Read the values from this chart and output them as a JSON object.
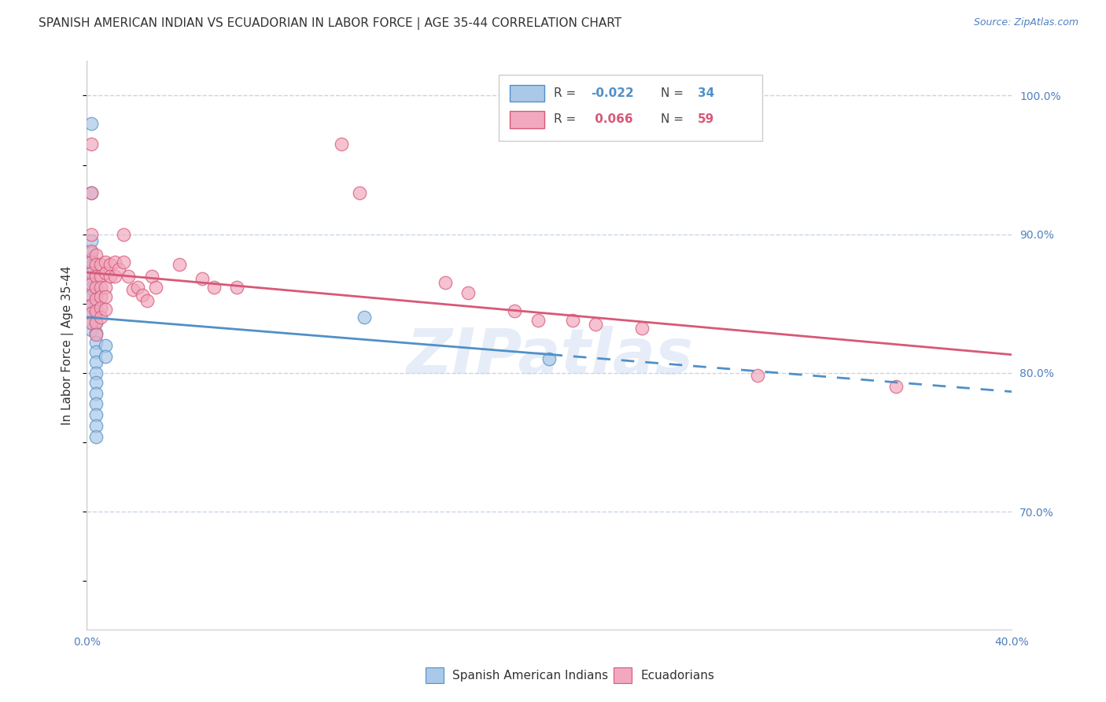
{
  "title": "SPANISH AMERICAN INDIAN VS ECUADORIAN IN LABOR FORCE | AGE 35-44 CORRELATION CHART",
  "source": "Source: ZipAtlas.com",
  "ylabel": "In Labor Force | Age 35-44",
  "xlim": [
    0.0,
    0.4
  ],
  "ylim": [
    0.615,
    1.025
  ],
  "x_ticks": [
    0.0,
    0.08,
    0.16,
    0.24,
    0.32,
    0.4
  ],
  "x_tick_labels": [
    "0.0%",
    "",
    "",
    "",
    "",
    "40.0%"
  ],
  "y_ticks_right": [
    0.7,
    0.8,
    0.9,
    1.0
  ],
  "y_tick_labels_right": [
    "70.0%",
    "80.0%",
    "90.0%",
    "100.0%"
  ],
  "blue_R": -0.022,
  "blue_N": 34,
  "pink_R": 0.066,
  "pink_N": 59,
  "blue_color": "#aac8e8",
  "pink_color": "#f2a8be",
  "blue_line_color": "#5090c8",
  "pink_line_color": "#d85878",
  "blue_scatter": [
    [
      0.002,
      0.98
    ],
    [
      0.002,
      0.93
    ],
    [
      0.002,
      0.895
    ],
    [
      0.002,
      0.887
    ],
    [
      0.002,
      0.882
    ],
    [
      0.002,
      0.877
    ],
    [
      0.002,
      0.872
    ],
    [
      0.002,
      0.867
    ],
    [
      0.002,
      0.861
    ],
    [
      0.002,
      0.855
    ],
    [
      0.002,
      0.848
    ],
    [
      0.002,
      0.843
    ],
    [
      0.002,
      0.836
    ],
    [
      0.002,
      0.831
    ],
    [
      0.004,
      0.862
    ],
    [
      0.004,
      0.856
    ],
    [
      0.004,
      0.849
    ],
    [
      0.004,
      0.843
    ],
    [
      0.004,
      0.837
    ],
    [
      0.004,
      0.829
    ],
    [
      0.004,
      0.822
    ],
    [
      0.004,
      0.815
    ],
    [
      0.004,
      0.808
    ],
    [
      0.004,
      0.8
    ],
    [
      0.004,
      0.793
    ],
    [
      0.004,
      0.785
    ],
    [
      0.004,
      0.778
    ],
    [
      0.004,
      0.77
    ],
    [
      0.004,
      0.762
    ],
    [
      0.004,
      0.754
    ],
    [
      0.008,
      0.82
    ],
    [
      0.008,
      0.812
    ],
    [
      0.12,
      0.84
    ],
    [
      0.2,
      0.81
    ]
  ],
  "pink_scatter": [
    [
      0.002,
      0.965
    ],
    [
      0.002,
      0.93
    ],
    [
      0.002,
      0.9
    ],
    [
      0.002,
      0.888
    ],
    [
      0.002,
      0.88
    ],
    [
      0.002,
      0.872
    ],
    [
      0.002,
      0.864
    ],
    [
      0.002,
      0.856
    ],
    [
      0.002,
      0.849
    ],
    [
      0.002,
      0.843
    ],
    [
      0.002,
      0.836
    ],
    [
      0.004,
      0.885
    ],
    [
      0.004,
      0.878
    ],
    [
      0.004,
      0.87
    ],
    [
      0.004,
      0.862
    ],
    [
      0.004,
      0.853
    ],
    [
      0.004,
      0.845
    ],
    [
      0.004,
      0.836
    ],
    [
      0.004,
      0.828
    ],
    [
      0.006,
      0.878
    ],
    [
      0.006,
      0.87
    ],
    [
      0.006,
      0.862
    ],
    [
      0.006,
      0.855
    ],
    [
      0.006,
      0.847
    ],
    [
      0.006,
      0.84
    ],
    [
      0.008,
      0.88
    ],
    [
      0.008,
      0.872
    ],
    [
      0.008,
      0.862
    ],
    [
      0.008,
      0.855
    ],
    [
      0.008,
      0.846
    ],
    [
      0.01,
      0.878
    ],
    [
      0.01,
      0.87
    ],
    [
      0.012,
      0.88
    ],
    [
      0.012,
      0.87
    ],
    [
      0.014,
      0.875
    ],
    [
      0.016,
      0.9
    ],
    [
      0.016,
      0.88
    ],
    [
      0.018,
      0.87
    ],
    [
      0.02,
      0.86
    ],
    [
      0.022,
      0.862
    ],
    [
      0.024,
      0.856
    ],
    [
      0.026,
      0.852
    ],
    [
      0.028,
      0.87
    ],
    [
      0.03,
      0.862
    ],
    [
      0.04,
      0.878
    ],
    [
      0.05,
      0.868
    ],
    [
      0.055,
      0.862
    ],
    [
      0.065,
      0.862
    ],
    [
      0.11,
      0.965
    ],
    [
      0.118,
      0.93
    ],
    [
      0.155,
      0.865
    ],
    [
      0.165,
      0.858
    ],
    [
      0.185,
      0.845
    ],
    [
      0.195,
      0.838
    ],
    [
      0.21,
      0.838
    ],
    [
      0.22,
      0.835
    ],
    [
      0.24,
      0.832
    ],
    [
      0.29,
      0.798
    ],
    [
      0.35,
      0.79
    ]
  ],
  "background_color": "#ffffff",
  "grid_color": "#c8d4e8",
  "watermark": "ZIPatlas",
  "title_fontsize": 11,
  "axis_label_fontsize": 11,
  "tick_fontsize": 10,
  "tick_color": "#5080c0",
  "title_color": "#333333",
  "source_color": "#5080c0"
}
